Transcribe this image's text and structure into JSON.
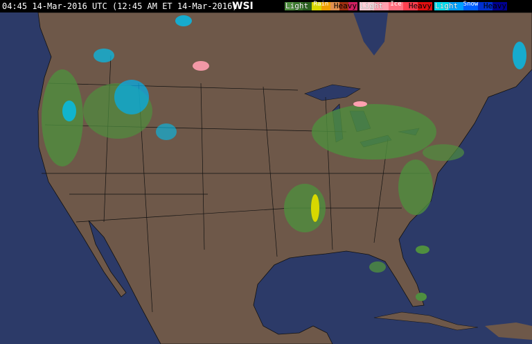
{
  "header": {
    "timestamp": "04:45 14-Mar-2016 UTC  (12:45 AM ET 14-Mar-2016)",
    "logo": "WSI"
  },
  "legend": [
    {
      "name": "Rain",
      "light": "Light",
      "heavy": "Heavy",
      "colors": [
        "#4f8f3f",
        "#3d7a30",
        "#2a6020",
        "#d8d800",
        "#f0a000",
        "#e09050",
        "#a03010",
        "#d02060"
      ]
    },
    {
      "name": "Ice",
      "light": "Light",
      "heavy": "Heavy",
      "colors": [
        "#ffd0d8",
        "#ffa0b0",
        "#ff7080",
        "#ff4050",
        "#e01010"
      ]
    },
    {
      "name": "Snow",
      "light": "Light",
      "heavy": "Heavy",
      "colors": [
        "#00e0f0",
        "#00a0ff",
        "#0060ff",
        "#0030d0",
        "#000090"
      ]
    }
  ],
  "colors": {
    "ocean": "#2c3a68",
    "land": "#6e5849",
    "borders": "#1a1a1a"
  }
}
